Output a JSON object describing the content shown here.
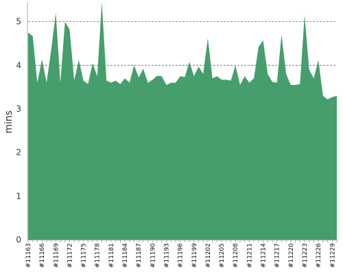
{
  "chart_data": {
    "type": "area",
    "title": "",
    "xlabel": "",
    "ylabel": "mins",
    "ylim": [
      0,
      5.45
    ],
    "yticks": [
      0,
      1,
      2,
      3,
      4,
      5
    ],
    "grid": true,
    "legend": "none",
    "colors": {
      "fill": "#459e6b",
      "grid": "#666666",
      "axis": "#aaaaaa"
    },
    "x": [
      "#11163",
      "#11164",
      "#11165",
      "#11166",
      "#11167",
      "#11168",
      "#11169",
      "#11170",
      "#11171",
      "#11172",
      "#11173",
      "#11174",
      "#11175",
      "#11176",
      "#11177",
      "#11178",
      "#11179",
      "#11180",
      "#11181",
      "#11182",
      "#11183",
      "#11184",
      "#11185",
      "#11186",
      "#11187",
      "#11188",
      "#11189",
      "#11190",
      "#11191",
      "#11192",
      "#11193",
      "#11194",
      "#11195",
      "#11196",
      "#11197",
      "#11198",
      "#11199",
      "#11200",
      "#11201",
      "#11202",
      "#11203",
      "#11204",
      "#11205",
      "#11206",
      "#11207",
      "#11208",
      "#11209",
      "#11210",
      "#11211",
      "#11212",
      "#11213",
      "#11214",
      "#11215",
      "#11216",
      "#11217",
      "#11218",
      "#11219",
      "#11220",
      "#11221",
      "#11222",
      "#11223",
      "#11224",
      "#11225",
      "#11226",
      "#11227",
      "#11228",
      "#11229",
      "#11230"
    ],
    "values": [
      4.75,
      4.67,
      3.6,
      4.14,
      3.6,
      4.35,
      5.2,
      3.6,
      5.0,
      4.82,
      3.65,
      4.12,
      3.65,
      3.57,
      4.05,
      3.75,
      5.45,
      3.65,
      3.6,
      3.65,
      3.57,
      3.7,
      3.6,
      4.0,
      3.72,
      3.92,
      3.6,
      3.67,
      3.76,
      3.75,
      3.55,
      3.6,
      3.6,
      3.75,
      3.73,
      4.08,
      3.75,
      3.97,
      3.8,
      4.62,
      3.7,
      3.75,
      3.67,
      3.67,
      3.65,
      4.0,
      3.55,
      3.75,
      3.6,
      3.7,
      4.42,
      4.57,
      3.8,
      3.62,
      3.6,
      4.7,
      3.8,
      3.55,
      3.55,
      3.57,
      5.15,
      3.9,
      3.7,
      4.12,
      3.3,
      3.22,
      3.27,
      3.3
    ],
    "xtick_labels": [
      "#11163",
      "#11166",
      "#11169",
      "#11172",
      "#11175",
      "#11178",
      "#11181",
      "#11184",
      "#11187",
      "#11190",
      "#11193",
      "#11196",
      "#11199",
      "#11202",
      "#11205",
      "#11208",
      "#11211",
      "#11214",
      "#11217",
      "#11220",
      "#11223",
      "#11226",
      "#11229"
    ]
  }
}
